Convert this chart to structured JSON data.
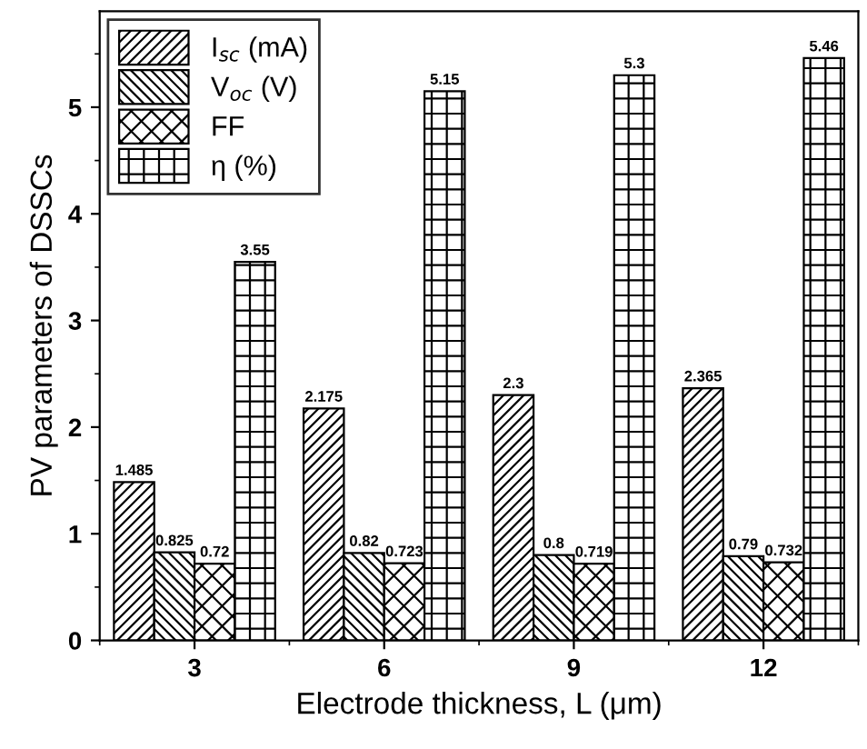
{
  "chart_data": {
    "type": "bar",
    "xlabel": "Electrode thickness, L (μm)",
    "ylabel": "PV parameters of DSSCs",
    "categories": [
      "3",
      "6",
      "9",
      "12"
    ],
    "series": [
      {
        "name": "I$_{sc}$ (mA)",
        "color": "#000000",
        "values": [
          1.485,
          2.175,
          2.3,
          2.365
        ]
      },
      {
        "name": "V$_{oc}$ (V)",
        "color": "#000000",
        "values": [
          0.825,
          0.82,
          0.8,
          0.79
        ]
      },
      {
        "name": "FF",
        "color": "#000000",
        "values": [
          0.72,
          0.723,
          0.719,
          0.732
        ]
      },
      {
        "name": "η (%)",
        "color": "#000000",
        "values": [
          3.55,
          5.15,
          5.3,
          5.46
        ]
      }
    ],
    "ylim": [
      0,
      5.9
    ],
    "yticks": [
      0,
      1,
      2,
      3,
      4,
      5
    ],
    "data_labels": true,
    "legend": "top left",
    "grid": false
  }
}
